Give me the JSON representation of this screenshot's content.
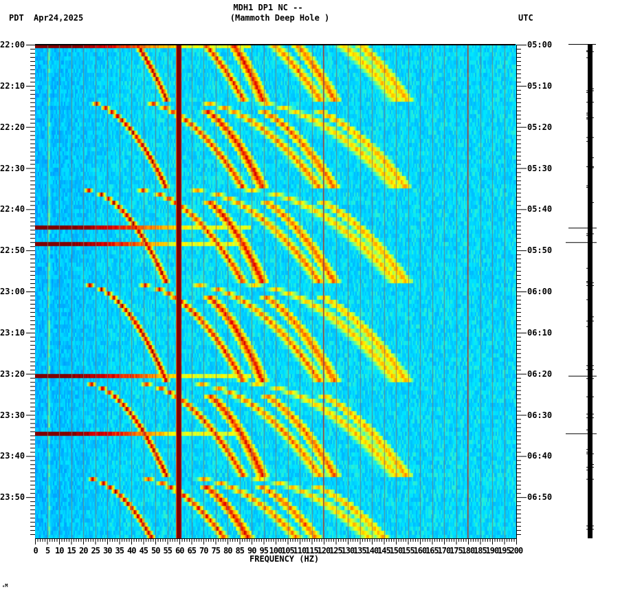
{
  "header": {
    "title_line1": "MDH1 DP1 NC --",
    "title_line2": "(Mammoth Deep Hole )",
    "timezone_left": "PDT",
    "date": "Apr24,2025",
    "timezone_right": "UTC"
  },
  "footer": {
    "corner_mark": "ₙM"
  },
  "chart_data": {
    "type": "heatmap",
    "title": "MDH1 DP1 NC -- (Mammoth Deep Hole )",
    "subtitle": "Apr24,2025",
    "xlabel": "FREQUENCY (HZ)",
    "ylabel_left": "PDT",
    "ylabel_right": "UTC",
    "xlim": [
      0,
      200
    ],
    "x_ticks": [
      0,
      5,
      10,
      15,
      20,
      25,
      30,
      35,
      40,
      45,
      50,
      55,
      60,
      65,
      70,
      75,
      80,
      85,
      90,
      95,
      100,
      105,
      110,
      115,
      120,
      125,
      130,
      135,
      140,
      145,
      150,
      155,
      160,
      165,
      170,
      175,
      180,
      185,
      190,
      195,
      200
    ],
    "x_tick_labels": [
      "0",
      "5",
      "10",
      "15",
      "20",
      "25",
      "30",
      "35",
      "40",
      "45",
      "50",
      "55",
      "60",
      "65",
      "70",
      "75",
      "80",
      "85",
      "90",
      "95",
      "100",
      "105",
      "110",
      "115",
      "120",
      "125",
      "130",
      "135",
      "140",
      "145",
      "150",
      "155",
      "160",
      "165",
      "170",
      "175",
      "180",
      "185",
      "190",
      "195",
      "200"
    ],
    "y_ticks_left": [
      "22:00",
      "22:10",
      "22:20",
      "22:30",
      "22:40",
      "22:50",
      "23:00",
      "23:10",
      "23:20",
      "23:30",
      "23:40",
      "23:50"
    ],
    "y_ticks_right": [
      "05:00",
      "05:10",
      "05:20",
      "05:30",
      "05:40",
      "05:50",
      "06:00",
      "06:10",
      "06:20",
      "06:30",
      "06:40",
      "06:50"
    ],
    "time_span_minutes": 120,
    "minor_tick_minutes": 1,
    "grid": "vertical gridlines every 5 Hz (gray)",
    "colormap": [
      "#00007f",
      "#0050ff",
      "#00a8ff",
      "#00e6ff",
      "#7fff7f",
      "#ffff00",
      "#ff8c00",
      "#e60000",
      "#800000"
    ],
    "background_level": "cyan/blue (low power)",
    "persistent_lines_hz": [
      {
        "freq": 60,
        "intensity": "very strong",
        "color": "#800000"
      },
      {
        "freq": 120,
        "intensity": "moderate",
        "color": "#b03020"
      },
      {
        "freq": 180,
        "intensity": "moderate",
        "color": "#b03020"
      }
    ],
    "broadband_events_minutes": [
      {
        "t": 0,
        "label": "22:00",
        "extent_hz": 60
      },
      {
        "t": 44.5,
        "label": "22:44",
        "extent_hz": 60
      },
      {
        "t": 48,
        "label": "22:48",
        "extent_hz": 55
      },
      {
        "t": 80.5,
        "label": "23:20",
        "extent_hz": 60
      },
      {
        "t": 94.5,
        "label": "23:34",
        "extent_hz": 55
      }
    ],
    "gliding_tone_cycles": {
      "description": "Repeating upward-curving frequency glides (harmonic families), restarting roughly every 23-25 minutes",
      "cycle_starts_minutes": [
        -10,
        13.5,
        35,
        58,
        82,
        105
      ],
      "cycle_lengths_minutes": [
        23.5,
        21.5,
        23,
        24,
        23,
        22
      ],
      "harmonic_start_hz": [
        20,
        42
      ],
      "harmonic_end_hz": [
        55,
        110
      ]
    },
    "side_trace": {
      "type": "amplitude trace",
      "spikes_minutes": [
        44.5,
        48,
        80.5,
        94.5
      ]
    }
  }
}
